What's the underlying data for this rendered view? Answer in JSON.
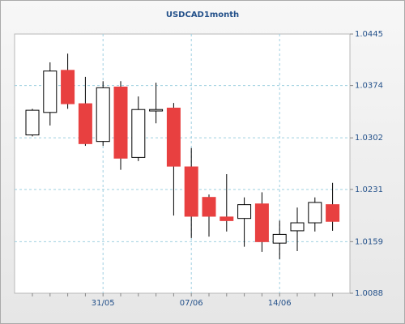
{
  "chart_data": {
    "type": "candlestick",
    "title": "USDCAD1month",
    "categories": [
      null,
      null,
      null,
      null,
      "31/05",
      null,
      null,
      null,
      null,
      "07/06",
      null,
      null,
      null,
      null,
      "14/06",
      null,
      null,
      null
    ],
    "open": [
      1.0306,
      1.0337,
      1.0395,
      1.0349,
      1.0297,
      1.0372,
      1.0275,
      1.0339,
      1.0343,
      1.0262,
      1.022,
      1.0193,
      1.0191,
      1.0211,
      1.0157,
      1.0174,
      1.0185,
      1.021
    ],
    "high": [
      1.0342,
      1.0406,
      1.0418,
      1.0386,
      1.038,
      1.038,
      1.0359,
      1.0378,
      1.035,
      1.0288,
      1.0224,
      1.0252,
      1.022,
      1.0227,
      1.0188,
      1.0206,
      1.022,
      1.024
    ],
    "low": [
      1.0304,
      1.0319,
      1.0342,
      1.0291,
      1.0291,
      1.0258,
      1.027,
      1.0322,
      1.0195,
      1.0164,
      1.0166,
      1.0173,
      1.0152,
      1.0145,
      1.0135,
      1.0146,
      1.0173,
      1.0174
    ],
    "close": [
      1.034,
      1.0394,
      1.0349,
      1.0294,
      1.0371,
      1.0274,
      1.0341,
      1.0341,
      1.0263,
      1.0194,
      1.0194,
      1.0188,
      1.021,
      1.0159,
      1.0169,
      1.0185,
      1.0213,
      1.0187
    ],
    "up_color": "#ffffff",
    "down_color": "#e84040",
    "ylim": [
      1.0088,
      1.0445
    ],
    "yticks": [
      1.0088,
      1.0159,
      1.0231,
      1.0302,
      1.0374,
      1.0445
    ],
    "grid": true
  }
}
